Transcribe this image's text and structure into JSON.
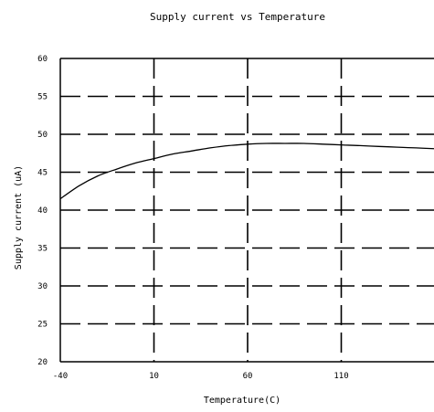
{
  "chart_data": {
    "type": "line",
    "title": "Supply current vs Temperature",
    "xlabel": "Temperature(C)",
    "ylabel": "Supply current (uA)",
    "xlim": [
      -40,
      160
    ],
    "ylim": [
      20,
      60
    ],
    "x_ticks": [
      -40,
      10,
      60,
      110
    ],
    "y_ticks": [
      20,
      25,
      30,
      35,
      40,
      45,
      50,
      55,
      60
    ],
    "grid": true,
    "series": [
      {
        "x": [
          -40,
          -30,
          -20,
          -10,
          0,
          10,
          20,
          30,
          40,
          50,
          60,
          70,
          80,
          90,
          100,
          110,
          120,
          130,
          140,
          150,
          160
        ],
        "values": [
          41.5,
          43.2,
          44.5,
          45.4,
          46.2,
          46.8,
          47.4,
          47.8,
          48.2,
          48.5,
          48.7,
          48.8,
          48.8,
          48.8,
          48.7,
          48.6,
          48.5,
          48.4,
          48.3,
          48.2,
          48.1
        ]
      }
    ]
  }
}
